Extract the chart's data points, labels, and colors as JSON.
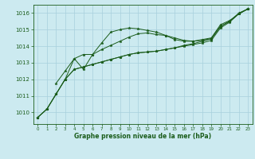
{
  "title": "Graphe pression niveau de la mer (hPa)",
  "bg_color": "#cceaf0",
  "grid_color": "#a8d0dc",
  "line_color": "#1a5c1a",
  "xlim": [
    -0.5,
    23.5
  ],
  "ylim": [
    1009.3,
    1016.5
  ],
  "yticks": [
    1010,
    1011,
    1012,
    1013,
    1014,
    1015,
    1016
  ],
  "xticks": [
    0,
    1,
    2,
    3,
    4,
    5,
    6,
    7,
    8,
    9,
    10,
    11,
    12,
    13,
    14,
    15,
    16,
    17,
    18,
    19,
    20,
    21,
    22,
    23
  ],
  "series1_x": [
    0,
    1,
    2,
    3,
    4,
    5,
    6,
    7,
    8,
    9,
    10,
    11,
    12,
    13,
    14,
    15,
    16,
    17,
    18,
    19,
    20,
    21,
    22,
    23
  ],
  "series1_y": [
    1009.7,
    1010.2,
    1011.1,
    1012.0,
    1013.25,
    1013.5,
    1013.5,
    1014.2,
    1014.85,
    1015.0,
    1015.1,
    1015.05,
    1014.95,
    1014.85,
    1014.65,
    1014.5,
    1014.35,
    1014.3,
    1014.4,
    1014.5,
    1015.3,
    1015.55,
    1015.95,
    1016.25
  ],
  "series2_x": [
    0,
    1,
    2,
    3,
    4,
    5,
    6,
    7,
    8,
    9,
    10,
    11,
    12,
    13,
    14,
    15,
    16,
    17,
    18,
    19,
    20,
    21,
    22,
    23
  ],
  "series2_y": [
    1009.7,
    1010.2,
    1011.1,
    1012.0,
    1012.6,
    1012.75,
    1012.9,
    1013.05,
    1013.2,
    1013.35,
    1013.5,
    1013.6,
    1013.65,
    1013.7,
    1013.8,
    1013.9,
    1014.0,
    1014.1,
    1014.2,
    1014.35,
    1015.1,
    1015.45,
    1015.95,
    1016.25
  ],
  "series3_x": [
    0,
    1,
    2,
    3,
    4,
    5,
    6,
    7,
    8,
    9,
    10,
    11,
    12,
    13,
    14,
    15,
    16,
    17,
    18,
    19,
    20,
    21,
    22,
    23
  ],
  "series3_y": [
    1009.7,
    1010.2,
    1011.1,
    1012.0,
    1012.6,
    1012.75,
    1012.9,
    1013.05,
    1013.2,
    1013.35,
    1013.5,
    1013.6,
    1013.65,
    1013.7,
    1013.8,
    1013.9,
    1014.05,
    1014.15,
    1014.3,
    1014.45,
    1015.2,
    1015.5,
    1016.0,
    1016.25
  ],
  "series4_x": [
    2,
    3,
    4,
    5,
    6,
    7,
    8,
    9,
    10,
    11,
    12,
    13,
    14,
    15,
    16,
    17,
    18,
    19,
    20,
    21,
    22,
    23
  ],
  "series4_y": [
    1011.75,
    1012.5,
    1013.25,
    1012.6,
    1013.5,
    1013.8,
    1014.05,
    1014.3,
    1014.55,
    1014.75,
    1014.8,
    1014.7,
    1014.65,
    1014.4,
    1014.3,
    1014.3,
    1014.35,
    1014.45,
    1015.2,
    1015.5,
    1015.95,
    1016.25
  ]
}
